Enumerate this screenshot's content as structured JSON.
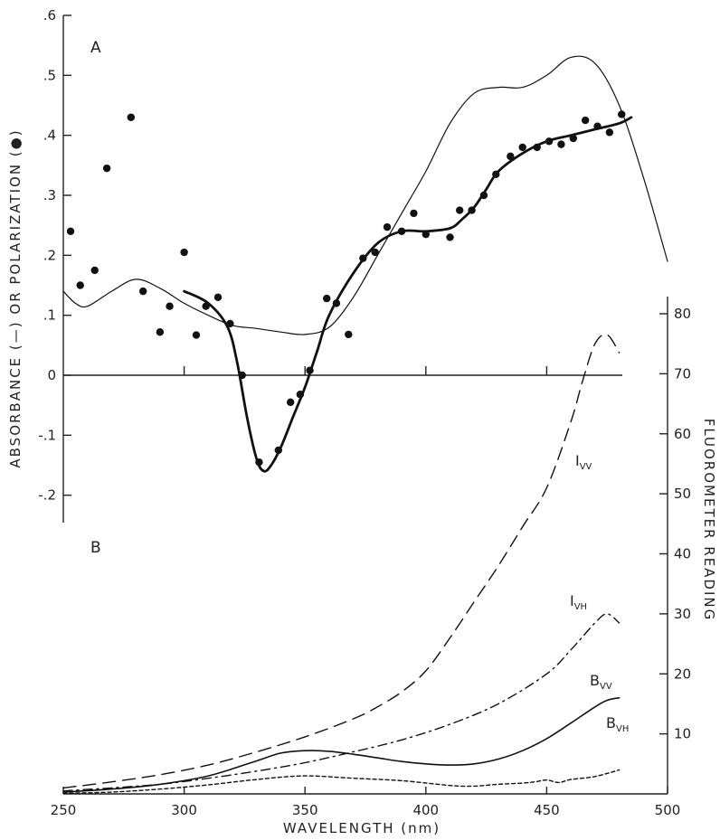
{
  "chart_data": [
    {
      "panel": "A",
      "type": "line",
      "panel_label": "A",
      "ylabel": "ABSORBANCE (—) OR POLARIZATION (●)",
      "xlim": [
        250,
        500
      ],
      "ylim": [
        -0.25,
        0.6
      ],
      "x_ticks": [
        300,
        350,
        400,
        450
      ],
      "y_ticks": [
        {
          "value": 0.6,
          "label": ".6"
        },
        {
          "value": 0.5,
          "label": ".5"
        },
        {
          "value": 0.4,
          "label": ".4"
        },
        {
          "value": 0.3,
          "label": ".3"
        },
        {
          "value": 0.2,
          "label": ".2"
        },
        {
          "value": 0.1,
          "label": ".1"
        },
        {
          "value": 0.0,
          "label": "0"
        },
        {
          "value": -0.1,
          "label": "-.1"
        },
        {
          "value": -0.2,
          "label": "-.2"
        }
      ],
      "series": [
        {
          "style": "thin-line",
          "x": [
            250,
            255,
            260,
            270,
            280,
            290,
            300,
            310,
            320,
            330,
            340,
            350,
            360,
            370,
            380,
            390,
            400,
            410,
            420,
            430,
            440,
            450,
            460,
            470,
            480,
            490,
            500
          ],
          "y": [
            0.14,
            0.12,
            0.115,
            0.14,
            0.16,
            0.145,
            0.12,
            0.1,
            0.083,
            0.078,
            0.072,
            0.068,
            0.08,
            0.13,
            0.2,
            0.27,
            0.34,
            0.42,
            0.47,
            0.48,
            0.48,
            0.5,
            0.53,
            0.52,
            0.45,
            0.33,
            0.19
          ]
        },
        {
          "style": "thick-line",
          "x": [
            300,
            310,
            318,
            322,
            326,
            330,
            333,
            336,
            340,
            345,
            350,
            355,
            360,
            370,
            380,
            390,
            400,
            410,
            415,
            420,
            425,
            430,
            440,
            450,
            460,
            470,
            480,
            485
          ],
          "y": [
            0.14,
            0.12,
            0.08,
            0.02,
            -0.07,
            -0.14,
            -0.16,
            -0.15,
            -0.12,
            -0.07,
            -0.02,
            0.04,
            0.1,
            0.17,
            0.22,
            0.24,
            0.24,
            0.245,
            0.26,
            0.28,
            0.31,
            0.34,
            0.37,
            0.39,
            0.4,
            0.41,
            0.42,
            0.43
          ]
        },
        {
          "style": "points",
          "x": [
            253,
            257,
            263,
            268,
            278,
            283,
            290,
            294,
            300,
            305,
            309,
            314,
            319,
            324,
            331,
            339,
            344,
            348,
            352,
            359,
            363,
            368,
            374,
            379,
            384,
            390,
            395,
            400,
            410,
            414,
            419,
            424,
            429,
            435,
            440,
            446,
            451,
            456,
            461,
            466,
            471,
            476,
            481
          ],
          "y": [
            0.24,
            0.15,
            0.175,
            0.345,
            0.43,
            0.14,
            0.072,
            0.115,
            0.205,
            0.067,
            0.115,
            0.13,
            0.086,
            0.0,
            -0.145,
            -0.125,
            -0.045,
            -0.032,
            0.008,
            0.128,
            0.12,
            0.068,
            0.195,
            0.205,
            0.247,
            0.24,
            0.27,
            0.235,
            0.23,
            0.275,
            0.275,
            0.3,
            0.335,
            0.365,
            0.38,
            0.38,
            0.39,
            0.385,
            0.395,
            0.425,
            0.415,
            0.405,
            0.435
          ]
        }
      ]
    },
    {
      "panel": "B",
      "type": "line",
      "panel_label": "B",
      "xlabel": "WAVELENGTH (nm)",
      "ylabel": "FLUOROMETER READING",
      "xlim": [
        250,
        500
      ],
      "ylim": [
        0,
        83
      ],
      "x_ticks": [
        250,
        300,
        350,
        400,
        450,
        500
      ],
      "y_ticks": [
        10,
        20,
        30,
        40,
        50,
        60,
        70,
        80
      ],
      "series": [
        {
          "name": "I",
          "subscript": "VV",
          "style": "long-dash",
          "x": [
            250,
            270,
            290,
            310,
            330,
            350,
            370,
            380,
            390,
            400,
            410,
            420,
            430,
            440,
            450,
            460,
            465,
            470,
            475,
            480
          ],
          "y": [
            1,
            2,
            3.2,
            4.8,
            7,
            9.5,
            12.5,
            14.5,
            17,
            20.5,
            26,
            32,
            38,
            44.5,
            51,
            62,
            69,
            75,
            76.5,
            73.5
          ]
        },
        {
          "name": "I",
          "subscript": "VH",
          "style": "dash-dot",
          "x": [
            250,
            270,
            290,
            310,
            330,
            350,
            370,
            390,
            410,
            430,
            450,
            460,
            470,
            475,
            480
          ],
          "y": [
            0.5,
            1,
            1.6,
            2.6,
            3.8,
            5.2,
            7,
            9,
            11.6,
            15,
            20,
            24,
            28.5,
            30,
            28.5
          ]
        },
        {
          "name": "B",
          "subscript": "VV",
          "style": "solid",
          "x": [
            250,
            270,
            290,
            310,
            330,
            340,
            350,
            360,
            370,
            380,
            390,
            400,
            410,
            420,
            430,
            440,
            450,
            460,
            470,
            475,
            480
          ],
          "y": [
            0.3,
            0.8,
            1.6,
            3,
            5.5,
            6.8,
            7.2,
            7.1,
            6.6,
            6,
            5.4,
            5,
            4.8,
            5,
            5.8,
            7.2,
            9.2,
            11.8,
            14.5,
            15.6,
            16
          ]
        },
        {
          "name": "B",
          "subscript": "VH",
          "style": "short-dash",
          "x": [
            250,
            270,
            290,
            310,
            330,
            350,
            370,
            390,
            410,
            420,
            430,
            440,
            445,
            450,
            455,
            460,
            470,
            480
          ],
          "y": [
            0.1,
            0.3,
            0.8,
            1.5,
            2.4,
            3,
            2.6,
            2.2,
            1.4,
            1.3,
            1.6,
            1.8,
            2,
            2.3,
            1.9,
            2.4,
            2.9,
            4
          ]
        }
      ]
    }
  ]
}
